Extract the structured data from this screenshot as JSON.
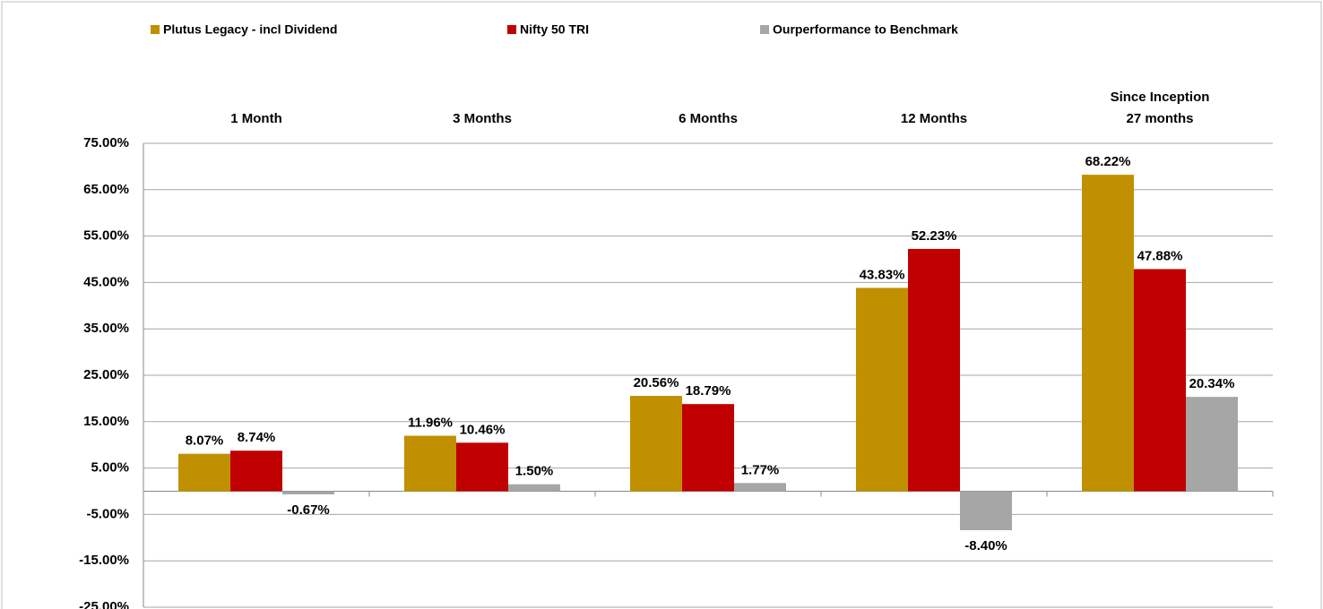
{
  "chart_data": {
    "type": "bar",
    "categories": [
      "1 Month",
      "3 Months",
      "6 Months",
      "12 Months",
      "Since Inception\n27 months"
    ],
    "series": [
      {
        "name": "Plutus Legacy - incl Dividend",
        "color": "#C09000",
        "values": [
          8.07,
          11.96,
          20.56,
          43.83,
          68.22
        ],
        "value_labels": [
          "8.07%",
          "11.96%",
          "20.56%",
          "43.83%",
          "68.22%"
        ]
      },
      {
        "name": "Nifty 50 TRI",
        "color": "#C00000",
        "values": [
          8.74,
          10.46,
          18.79,
          52.23,
          47.88
        ],
        "value_labels": [
          "8.74%",
          "10.46%",
          "18.79%",
          "52.23%",
          "47.88%"
        ]
      },
      {
        "name": "Ourperformance to Benchmark",
        "color": "#A6A6A6",
        "values": [
          -0.67,
          1.5,
          1.77,
          -8.4,
          20.34
        ],
        "value_labels": [
          "-0.67%",
          "1.50%",
          "1.77%",
          "-8.40%",
          "20.34%"
        ]
      }
    ],
    "ylim": [
      -25,
      75
    ],
    "yticks": [
      {
        "value": 75,
        "label": "75.00%"
      },
      {
        "value": 65,
        "label": "65.00%"
      },
      {
        "value": 55,
        "label": "55.00%"
      },
      {
        "value": 45,
        "label": "45.00%"
      },
      {
        "value": 35,
        "label": "35.00%"
      },
      {
        "value": 25,
        "label": "25.00%"
      },
      {
        "value": 15,
        "label": "15.00%"
      },
      {
        "value": 5,
        "label": "5.00%"
      },
      {
        "value": -5,
        "label": "-5.00%"
      },
      {
        "value": -15,
        "label": "-15.00%"
      },
      {
        "value": -25,
        "label": "-25.00%"
      }
    ],
    "grid": true,
    "legend": "top"
  }
}
